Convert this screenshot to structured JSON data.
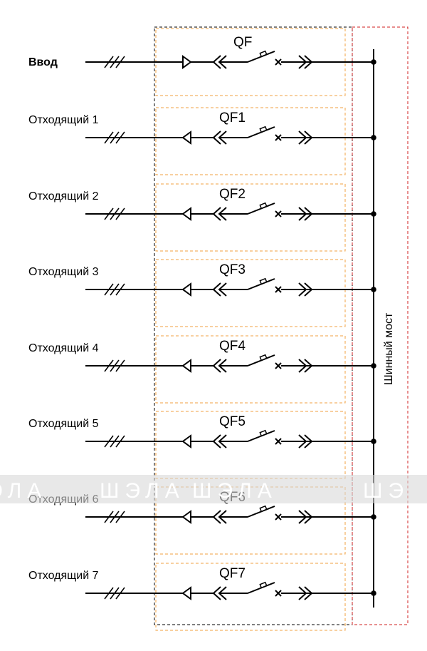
{
  "feeders": [
    {
      "label": "Ввод",
      "breaker": "QF",
      "bold": true
    },
    {
      "label": "Отходящий 1",
      "breaker": "QF1",
      "bold": false
    },
    {
      "label": "Отходящий 2",
      "breaker": "QF2",
      "bold": false
    },
    {
      "label": "Отходящий 3",
      "breaker": "QF3",
      "bold": false
    },
    {
      "label": "Отходящий 4",
      "breaker": "QF4",
      "bold": false
    },
    {
      "label": "Отходящий 5",
      "breaker": "QF5",
      "bold": false
    },
    {
      "label": "Отходящий 6",
      "breaker": "QF6",
      "bold": false
    },
    {
      "label": "Отходящий 7",
      "breaker": "QF7",
      "bold": false
    }
  ],
  "busbar_label": "Шинный мост",
  "watermark": [
    "ЭЛА",
    "ШЭЛА",
    "ШЭЛА",
    "ШЭ"
  ],
  "colors": {
    "line": "#000000",
    "cabinet_border": "#000000",
    "compartment_border": "#f0a040",
    "busbar_border": "#d02020",
    "watermark_band": "#d9d9d9",
    "background": "#ffffff"
  }
}
